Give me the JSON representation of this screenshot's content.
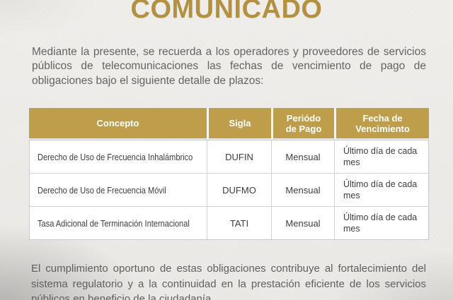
{
  "title": "COMUNICADO",
  "intro": "Mediante la presente, se recuerda a los operadores y proveedores de servicios públicos de telecomunicaciones las fechas de vencimiento de pago de obligaciones bajo el siguiente detalle de plazos:",
  "table": {
    "headers": [
      "Concepto",
      "Sigla",
      "Periódo de Pago",
      "Fecha de Vencimiento"
    ],
    "rows": [
      {
        "concepto": "Derecho de Uso de Frecuencia Inhalámbrico",
        "sigla": "DUFIN",
        "periodo": "Mensual",
        "vencimiento": "Último día de cada mes"
      },
      {
        "concepto": "Derecho de Uso de Frecuencia Móvil",
        "sigla": "DUFMO",
        "periodo": "Mensual",
        "vencimiento": "Último día de cada mes"
      },
      {
        "concepto": "Tasa Adicional de Terminación Internacional",
        "sigla": "TATI",
        "periodo": "Mensual",
        "vencimiento": "Último día de cada mes"
      }
    ]
  },
  "footer": "El cumplimiento oportuno de estas obligaciones contribuye al fortalecimiento del sistema regulatorio y a la continuidad en la prestación eficiente de los servicios públicos en beneficio de la ciudadanía.",
  "colors": {
    "title_gold": "#b39140",
    "header_gold": "#bf9e4b",
    "body_text": "#636363",
    "cell_text": "#3e3e3e",
    "background": "#efedea"
  }
}
